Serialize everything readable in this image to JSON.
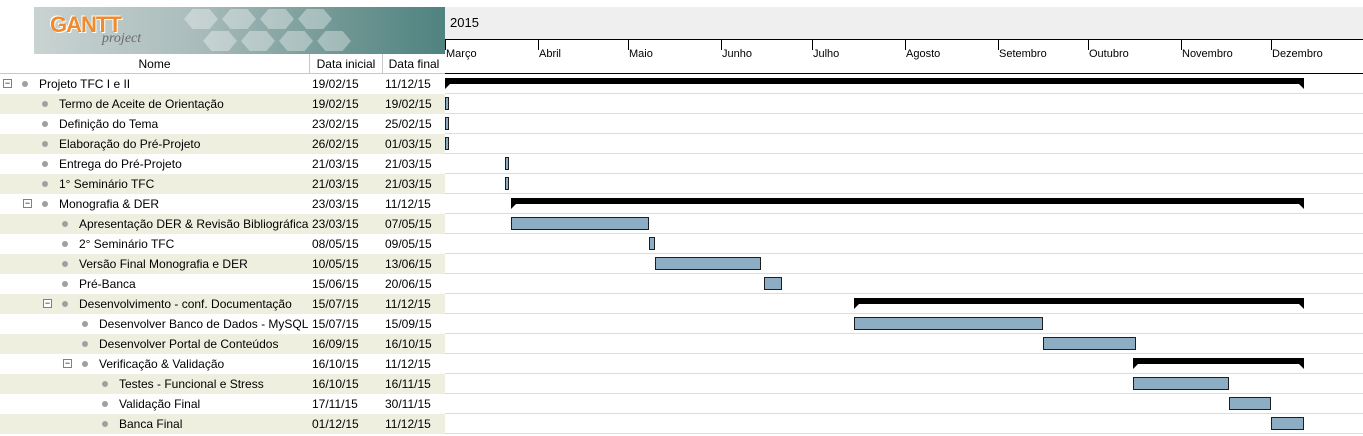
{
  "logo": {
    "brand": "GANTT",
    "sub": "project"
  },
  "columns": {
    "name": "Nome",
    "start": "Data inicial",
    "end": "Data final"
  },
  "timeline": {
    "year": "2015",
    "months": [
      "Março",
      "Abril",
      "Maio",
      "Junho",
      "Julho",
      "Agosto",
      "Setembro",
      "Outubro",
      "Novembro",
      "Dezembro"
    ]
  },
  "colors": {
    "task_bar": "#8cadc4",
    "summary_bar": "#000000",
    "alt_row": "#efefe0"
  },
  "tasks": [
    {
      "name": "Projeto TFC I e II",
      "start": "19/02/15",
      "end": "11/12/15",
      "level": 0,
      "toggle": "−",
      "summary": true
    },
    {
      "name": "Termo de Aceite de Orientação",
      "start": "19/02/15",
      "end": "19/02/15",
      "level": 1,
      "summary": false
    },
    {
      "name": "Definição do Tema",
      "start": "23/02/15",
      "end": "25/02/15",
      "level": 1,
      "summary": false
    },
    {
      "name": "Elaboração do Pré-Projeto",
      "start": "26/02/15",
      "end": "01/03/15",
      "level": 1,
      "summary": false
    },
    {
      "name": "Entrega do Pré-Projeto",
      "start": "21/03/15",
      "end": "21/03/15",
      "level": 1,
      "summary": false
    },
    {
      "name": "1° Seminário TFC",
      "start": "21/03/15",
      "end": "21/03/15",
      "level": 1,
      "summary": false
    },
    {
      "name": "Monografia & DER",
      "start": "23/03/15",
      "end": "11/12/15",
      "level": 1,
      "toggle": "−",
      "summary": true
    },
    {
      "name": "Apresentação DER & Revisão Bibliográfica",
      "start": "23/03/15",
      "end": "07/05/15",
      "level": 2,
      "summary": false
    },
    {
      "name": "2° Seminário TFC",
      "start": "08/05/15",
      "end": "09/05/15",
      "level": 2,
      "summary": false
    },
    {
      "name": "Versão Final Monografia e DER",
      "start": "10/05/15",
      "end": "13/06/15",
      "level": 2,
      "summary": false
    },
    {
      "name": "Pré-Banca",
      "start": "15/06/15",
      "end": "20/06/15",
      "level": 2,
      "summary": false
    },
    {
      "name": "Desenvolvimento - conf. Documentação",
      "start": "15/07/15",
      "end": "11/12/15",
      "level": 2,
      "toggle": "−",
      "summary": true
    },
    {
      "name": "Desenvolver Banco de Dados - MySQL",
      "start": "15/07/15",
      "end": "15/09/15",
      "level": 3,
      "summary": false
    },
    {
      "name": "Desenvolver Portal de Conteúdos",
      "start": "16/09/15",
      "end": "16/10/15",
      "level": 3,
      "summary": false
    },
    {
      "name": "Verificação & Validação",
      "start": "16/10/15",
      "end": "11/12/15",
      "level": 3,
      "toggle": "−",
      "summary": true
    },
    {
      "name": "Testes - Funcional e Stress",
      "start": "16/10/15",
      "end": "16/11/15",
      "level": 4,
      "summary": false
    },
    {
      "name": "Validação Final",
      "start": "17/11/15",
      "end": "30/11/15",
      "level": 4,
      "summary": false
    },
    {
      "name": "Banca Final",
      "start": "01/12/15",
      "end": "11/12/15",
      "level": 4,
      "summary": false
    }
  ]
}
